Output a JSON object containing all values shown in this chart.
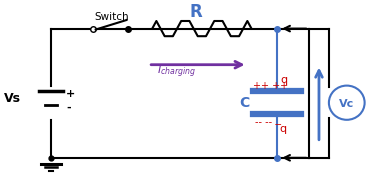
{
  "bg_color": "#ffffff",
  "wire_color": "#000000",
  "blue_color": "#4472c4",
  "purple_color": "#7030a0",
  "red_color": "#cc0000",
  "switch_label": "Switch",
  "R_label": "R",
  "C_label": "C",
  "Vs_label": "Vs",
  "Vc_label": "Vc",
  "I_label": "I",
  "charging_label": "charging",
  "q_top_label": "q",
  "q_bot_label": "q"
}
